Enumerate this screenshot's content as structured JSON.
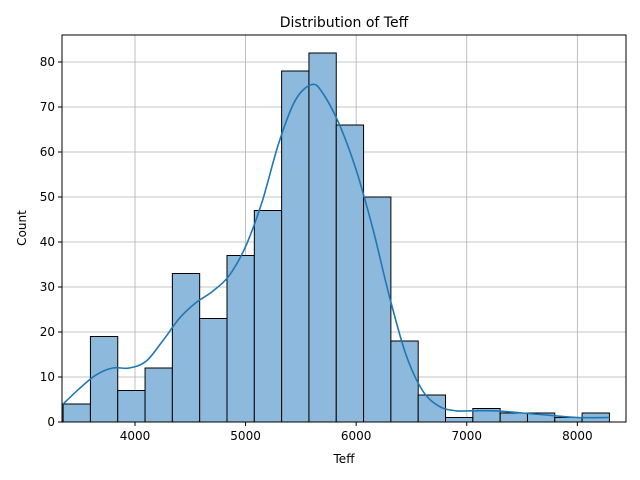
{
  "chart_data": {
    "type": "bar",
    "subtype": "histogram-with-kde",
    "title": "Distribution of Teff",
    "xlabel": "Teff",
    "ylabel": "Count",
    "xlim": [
      3340,
      8440
    ],
    "ylim": [
      0,
      86
    ],
    "x_ticks": [
      4000,
      5000,
      6000,
      7000,
      8000
    ],
    "y_ticks": [
      0,
      10,
      20,
      30,
      40,
      50,
      60,
      70,
      80
    ],
    "grid": true,
    "bin_edges": [
      3350,
      3597,
      3844,
      4091,
      4338,
      4585,
      4832,
      5079,
      5326,
      5573,
      5820,
      6067,
      6314,
      6561,
      6808,
      7055,
      7302,
      7549,
      7796,
      8043,
      8290
    ],
    "counts": [
      4,
      19,
      7,
      12,
      33,
      23,
      37,
      47,
      78,
      82,
      66,
      50,
      18,
      6,
      1,
      3,
      2,
      2,
      1,
      2
    ],
    "kde": {
      "x": [
        3350,
        3500,
        3650,
        3800,
        3950,
        4100,
        4250,
        4400,
        4550,
        4700,
        4850,
        5000,
        5150,
        5300,
        5450,
        5600,
        5700,
        5850,
        6000,
        6150,
        6300,
        6450,
        6600,
        6750,
        6900,
        7050,
        7250,
        7500,
        7750,
        8000,
        8290
      ],
      "y": [
        4,
        7.5,
        10.5,
        12,
        12,
        13.5,
        18,
        23,
        26.5,
        29,
        32.5,
        39,
        49,
        62,
        71.5,
        75,
        73,
        66,
        56,
        43,
        28,
        15,
        7,
        3.5,
        2.5,
        2.5,
        2.5,
        2,
        1.5,
        1,
        1
      ]
    },
    "colors": {
      "bar_fill": "#8db9dc",
      "bar_edge": "#000000",
      "kde_line": "#1f77b4",
      "grid": "#b0b0b0"
    }
  }
}
